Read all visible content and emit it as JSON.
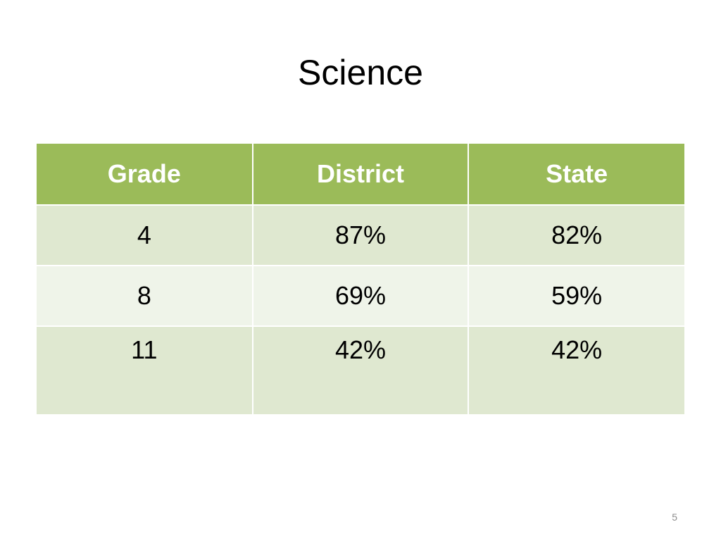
{
  "slide": {
    "title": "Science",
    "page_number": "5"
  },
  "table": {
    "headers": [
      "Grade",
      "District",
      "State"
    ],
    "rows": [
      [
        "4",
        "87%",
        "82%"
      ],
      [
        "8",
        "69%",
        "59%"
      ],
      [
        "11",
        "42%",
        "42%"
      ]
    ]
  },
  "colors": {
    "header_bg": "#9bbb59",
    "row_odd_bg": "#dfe8d0",
    "row_even_bg": "#eff4e9"
  }
}
